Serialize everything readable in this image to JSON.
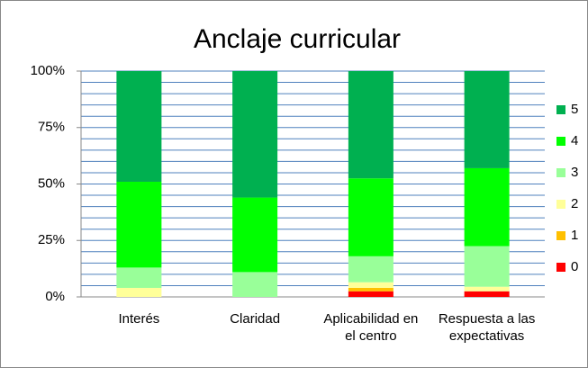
{
  "chart_data": {
    "type": "stacked_bar_percent",
    "title": "Anclaje curricular",
    "categories": [
      "Interés",
      "Claridad",
      "Aplicabilidad en el centro",
      "Respuesta a las expectativas"
    ],
    "series": [
      {
        "name": "0",
        "color": "#ff0000",
        "values": [
          0,
          0,
          2.5,
          2.5
        ]
      },
      {
        "name": "1",
        "color": "#ffc000",
        "values": [
          0,
          0,
          1.5,
          0
        ]
      },
      {
        "name": "2",
        "color": "#ffff99",
        "values": [
          4,
          0,
          2.5,
          2
        ]
      },
      {
        "name": "3",
        "color": "#99ff99",
        "values": [
          9,
          11,
          11.5,
          18
        ]
      },
      {
        "name": "4",
        "color": "#00ff00",
        "values": [
          38,
          33,
          34.5,
          34.5
        ]
      },
      {
        "name": "5",
        "color": "#00b050",
        "values": [
          49,
          56,
          47.5,
          43
        ]
      }
    ],
    "ylim": [
      0,
      100
    ],
    "yticks": [
      {
        "value": 0,
        "label": "0%"
      },
      {
        "value": 25,
        "label": "25%"
      },
      {
        "value": 50,
        "label": "50%"
      },
      {
        "value": 75,
        "label": "75%"
      },
      {
        "value": 100,
        "label": "100%"
      }
    ],
    "minor_yticks": [
      5,
      10,
      15,
      20,
      30,
      35,
      40,
      45,
      55,
      60,
      65,
      70,
      80,
      85,
      90,
      95
    ],
    "grid": true,
    "grid_color": "#4f81bd",
    "legend": "right"
  }
}
